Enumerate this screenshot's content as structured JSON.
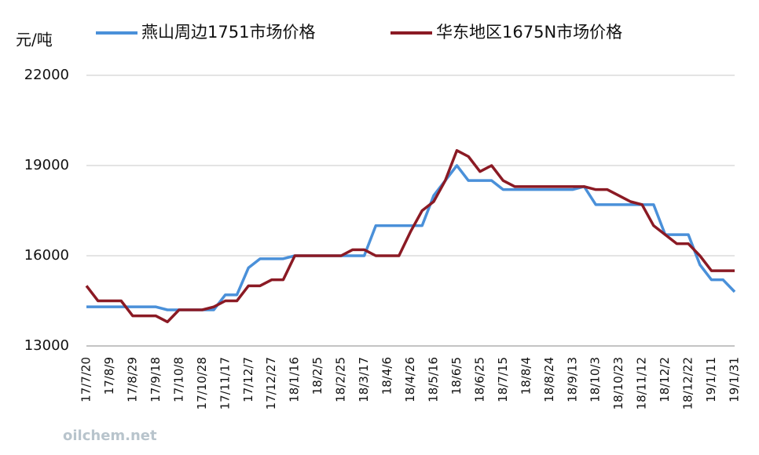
{
  "chart_data": {
    "type": "line",
    "y_axis_label": "元/吨",
    "watermark": "oilchem.net",
    "categories": [
      "17/7/20",
      null,
      "17/8/9",
      null,
      "17/8/29",
      null,
      "17/9/18",
      null,
      "17/10/8",
      null,
      "17/10/28",
      null,
      "17/11/17",
      null,
      "17/12/7",
      null,
      "17/12/27",
      null,
      "18/1/16",
      null,
      "18/2/5",
      null,
      "18/2/25",
      null,
      "18/3/17",
      null,
      "18/4/6",
      null,
      "18/4/26",
      null,
      "18/5/16",
      null,
      "18/6/5",
      null,
      "18/6/25",
      null,
      "18/7/15",
      null,
      "18/8/4",
      null,
      "18/8/24",
      null,
      "18/9/13",
      null,
      "18/10/3",
      null,
      "18/10/23",
      null,
      "18/11/12",
      null,
      "18/12/2",
      null,
      "18/12/22",
      null,
      "19/1/11",
      null,
      "19/1/31"
    ],
    "series": [
      {
        "name": "燕山周边1751市场价格",
        "color": "#4a90d9",
        "values": [
          14300,
          14300,
          14300,
          14300,
          14300,
          14300,
          14300,
          14200,
          14200,
          14200,
          14200,
          14200,
          14700,
          14700,
          15600,
          15900,
          15900,
          15900,
          16000,
          16000,
          16000,
          16000,
          16000,
          16000,
          16000,
          17000,
          17000,
          17000,
          17000,
          17000,
          18000,
          18500,
          19000,
          18500,
          18500,
          18500,
          18200,
          18200,
          18200,
          18200,
          18200,
          18200,
          18200,
          18300,
          17700,
          17700,
          17700,
          17700,
          17700,
          17700,
          16700,
          16700,
          16700,
          15700,
          15200,
          15200,
          14800
        ]
      },
      {
        "name": "华东地区1675N市场价格",
        "color": "#8b1a24",
        "values": [
          15000,
          14500,
          14500,
          14500,
          14000,
          14000,
          14000,
          13800,
          14200,
          14200,
          14200,
          14300,
          14500,
          14500,
          15000,
          15000,
          15200,
          15200,
          16000,
          16000,
          16000,
          16000,
          16000,
          16200,
          16200,
          16000,
          16000,
          16000,
          16800,
          17500,
          17800,
          18500,
          19500,
          19300,
          18800,
          19000,
          18500,
          18300,
          18300,
          18300,
          18300,
          18300,
          18300,
          18300,
          18200,
          18200,
          18000,
          17800,
          17700,
          17000,
          16700,
          16400,
          16400,
          16000,
          15500,
          15500,
          15500
        ]
      }
    ],
    "ylim": [
      13000,
      22000
    ],
    "yticks": [
      13000,
      16000,
      19000,
      22000
    ],
    "grid": true
  }
}
